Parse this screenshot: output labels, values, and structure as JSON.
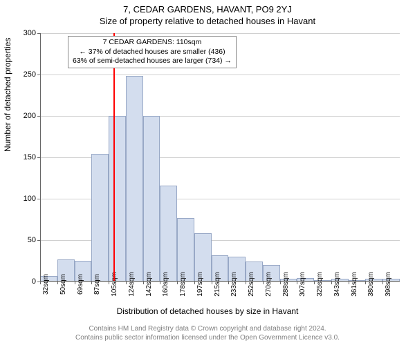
{
  "header": {
    "address": "7, CEDAR GARDENS, HAVANT, PO9 2YJ",
    "subtitle": "Size of property relative to detached houses in Havant"
  },
  "info_box": {
    "line1": "7 CEDAR GARDENS: 110sqm",
    "line2": "← 37% of detached houses are smaller (436)",
    "line3": "63% of semi-detached houses are larger (734) →"
  },
  "chart": {
    "type": "histogram",
    "y_label": "Number of detached properties",
    "x_label": "Distribution of detached houses by size in Havant",
    "ylim": [
      0,
      300
    ],
    "ytick_step": 50,
    "y_ticks": [
      0,
      50,
      100,
      150,
      200,
      250,
      300
    ],
    "x_categories": [
      "32sqm",
      "50sqm",
      "69sqm",
      "87sqm",
      "105sqm",
      "124sqm",
      "142sqm",
      "160sqm",
      "178sqm",
      "197sqm",
      "215sqm",
      "233sqm",
      "252sqm",
      "270sqm",
      "288sqm",
      "307sqm",
      "325sqm",
      "343sqm",
      "361sqm",
      "380sqm",
      "398sqm"
    ],
    "values": [
      7,
      27,
      25,
      154,
      200,
      248,
      200,
      116,
      77,
      58,
      32,
      30,
      24,
      20,
      3,
      4,
      2,
      3,
      0,
      3,
      3
    ],
    "marker_index": 4,
    "marker_offset": 0.28,
    "bar_fill": "#d3ddee",
    "bar_stroke": "#98a8c6",
    "marker_color": "#ff0000",
    "grid_color": "#d0d0d0",
    "axis_color": "#666666",
    "background": "#ffffff",
    "font_family": "Arial",
    "title_fontsize": 13,
    "label_fontsize": 12,
    "tick_fontsize": 11
  },
  "footer": {
    "line1": "Contains HM Land Registry data © Crown copyright and database right 2024.",
    "line2": "Contains public sector information licensed under the Open Government Licence v3.0."
  }
}
